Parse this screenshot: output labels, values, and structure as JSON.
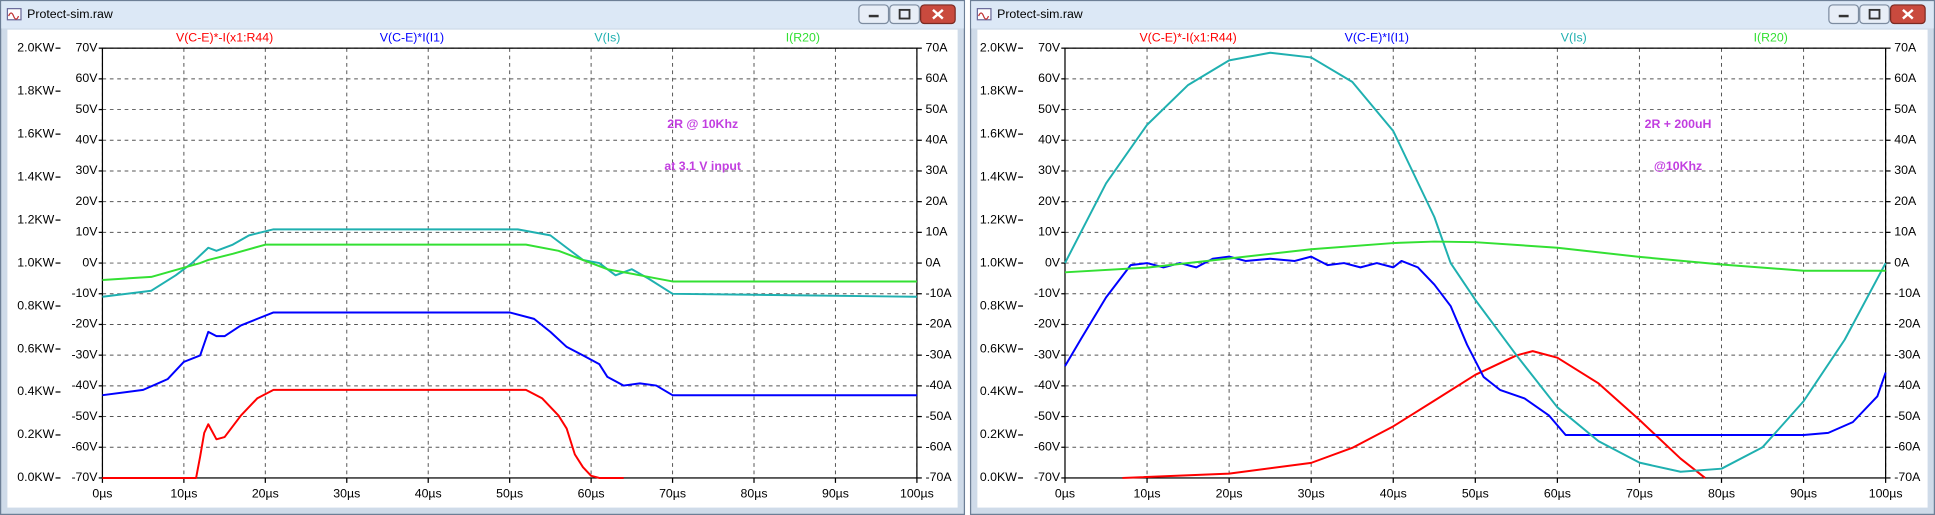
{
  "windows": [
    {
      "title": "Protect-sim.raw"
    },
    {
      "title": "Protect-sim.raw"
    }
  ],
  "chart_data": [
    {
      "type": "line",
      "annotations": [
        "2R @ 10Khz",
        "at 3.1 V input"
      ],
      "xlim": [
        0,
        100
      ],
      "xticks": [
        {
          "value": 0,
          "label": "0µs"
        },
        {
          "value": 10,
          "label": "10µs"
        },
        {
          "value": 20,
          "label": "20µs"
        },
        {
          "value": 30,
          "label": "30µs"
        },
        {
          "value": 40,
          "label": "40µs"
        },
        {
          "value": 50,
          "label": "50µs"
        },
        {
          "value": 60,
          "label": "60µs"
        },
        {
          "value": 70,
          "label": "70µs"
        },
        {
          "value": 80,
          "label": "80µs"
        },
        {
          "value": 90,
          "label": "90µs"
        },
        {
          "value": 100,
          "label": "100µs"
        }
      ],
      "ylim": [
        0,
        2
      ],
      "yticks": [
        {
          "value": 0,
          "label": "0.0KW"
        },
        {
          "value": 0.2,
          "label": "0.2KW"
        },
        {
          "value": 0.4,
          "label": "0.4KW"
        },
        {
          "value": 0.6,
          "label": "0.6KW"
        },
        {
          "value": 0.8,
          "label": "0.8KW"
        },
        {
          "value": 1,
          "label": "1.0KW"
        },
        {
          "value": 1.2,
          "label": "1.2KW"
        },
        {
          "value": 1.4,
          "label": "1.4KW"
        },
        {
          "value": 1.6,
          "label": "1.6KW"
        },
        {
          "value": 1.8,
          "label": "1.8KW"
        },
        {
          "value": 2,
          "label": "2.0KW"
        }
      ],
      "y2lim": [
        -70,
        70
      ],
      "y2ticks": [
        {
          "value": -70,
          "label": "-70V"
        },
        {
          "value": -60,
          "label": "-60V"
        },
        {
          "value": -50,
          "label": "-50V"
        },
        {
          "value": -40,
          "label": "-40V"
        },
        {
          "value": -30,
          "label": "-30V"
        },
        {
          "value": -20,
          "label": "-20V"
        },
        {
          "value": -10,
          "label": "-10V"
        },
        {
          "value": 0,
          "label": "0V"
        },
        {
          "value": 10,
          "label": "10V"
        },
        {
          "value": 20,
          "label": "20V"
        },
        {
          "value": 30,
          "label": "30V"
        },
        {
          "value": 40,
          "label": "40V"
        },
        {
          "value": 50,
          "label": "50V"
        },
        {
          "value": 60,
          "label": "60V"
        },
        {
          "value": 70,
          "label": "70V"
        }
      ],
      "y3lim": [
        -70,
        70
      ],
      "y3ticks": [
        {
          "value": -70,
          "label": "-70A"
        },
        {
          "value": -60,
          "label": "-60A"
        },
        {
          "value": -50,
          "label": "-50A"
        },
        {
          "value": -40,
          "label": "-40A"
        },
        {
          "value": -30,
          "label": "-30A"
        },
        {
          "value": -20,
          "label": "-20A"
        },
        {
          "value": -10,
          "label": "-10A"
        },
        {
          "value": 0,
          "label": "0A"
        },
        {
          "value": 10,
          "label": "10A"
        },
        {
          "value": 20,
          "label": "20A"
        },
        {
          "value": 30,
          "label": "30A"
        },
        {
          "value": 40,
          "label": "40A"
        },
        {
          "value": 50,
          "label": "50A"
        },
        {
          "value": 60,
          "label": "60A"
        },
        {
          "value": 70,
          "label": "70A"
        }
      ],
      "grid": true,
      "series": [
        {
          "name": "V(C-E)*-I(x1:R44)",
          "color": "#ff0000",
          "axis": "y",
          "x": [
            0,
            11.5,
            12,
            12.5,
            13,
            14,
            15,
            17,
            19,
            21,
            52,
            54,
            56,
            57,
            58,
            59,
            60,
            61,
            64
          ],
          "values": [
            0,
            0,
            0.1,
            0.21,
            0.25,
            0.18,
            0.19,
            0.29,
            0.37,
            0.41,
            0.41,
            0.37,
            0.29,
            0.23,
            0.11,
            0.05,
            0.01,
            0,
            0
          ]
        },
        {
          "name": "V(C-E)*I(I1)",
          "color": "#0000ff",
          "axis": "y",
          "x": [
            0,
            5,
            8,
            10,
            12,
            13,
            14,
            15,
            17,
            19,
            21,
            50,
            53,
            55,
            57,
            59,
            61,
            62,
            64,
            66,
            68,
            70,
            100
          ],
          "values": [
            0.385,
            0.41,
            0.46,
            0.54,
            0.57,
            0.68,
            0.66,
            0.66,
            0.71,
            0.74,
            0.77,
            0.77,
            0.74,
            0.68,
            0.61,
            0.57,
            0.53,
            0.47,
            0.43,
            0.44,
            0.43,
            0.385,
            0.385
          ]
        },
        {
          "name": "V(Is)",
          "color": "#1fb0b0",
          "axis": "y2",
          "x": [
            0,
            6,
            9,
            11,
            13,
            14,
            16,
            18,
            21,
            51,
            55,
            57,
            59,
            61,
            63,
            65,
            67,
            70,
            100
          ],
          "values": [
            -11,
            -9,
            -4,
            0,
            5,
            4,
            6,
            9,
            11,
            11,
            9,
            5,
            1,
            0,
            -4,
            -2,
            -5,
            -10,
            -11
          ]
        },
        {
          "name": "I(R20)",
          "color": "#33e033",
          "axis": "y3",
          "x": [
            0,
            6,
            12,
            13,
            16,
            20,
            52,
            56,
            60,
            62,
            66,
            70,
            100
          ],
          "values": [
            -5.5,
            -4.5,
            0,
            1,
            3,
            6,
            6,
            4,
            0,
            -2,
            -4,
            -6,
            -6
          ]
        }
      ]
    },
    {
      "type": "line",
      "annotations": [
        "2R + 200uH",
        "@10Khz"
      ],
      "xlim": [
        0,
        100
      ],
      "xticks": [
        {
          "value": 0,
          "label": "0µs"
        },
        {
          "value": 10,
          "label": "10µs"
        },
        {
          "value": 20,
          "label": "20µs"
        },
        {
          "value": 30,
          "label": "30µs"
        },
        {
          "value": 40,
          "label": "40µs"
        },
        {
          "value": 50,
          "label": "50µs"
        },
        {
          "value": 60,
          "label": "60µs"
        },
        {
          "value": 70,
          "label": "70µs"
        },
        {
          "value": 80,
          "label": "80µs"
        },
        {
          "value": 90,
          "label": "90µs"
        },
        {
          "value": 100,
          "label": "100µs"
        }
      ],
      "ylim": [
        0,
        2
      ],
      "yticks": [
        {
          "value": 0,
          "label": "0.0KW"
        },
        {
          "value": 0.2,
          "label": "0.2KW"
        },
        {
          "value": 0.4,
          "label": "0.4KW"
        },
        {
          "value": 0.6,
          "label": "0.6KW"
        },
        {
          "value": 0.8,
          "label": "0.8KW"
        },
        {
          "value": 1,
          "label": "1.0KW"
        },
        {
          "value": 1.2,
          "label": "1.2KW"
        },
        {
          "value": 1.4,
          "label": "1.4KW"
        },
        {
          "value": 1.6,
          "label": "1.6KW"
        },
        {
          "value": 1.8,
          "label": "1.8KW"
        },
        {
          "value": 2,
          "label": "2.0KW"
        }
      ],
      "y2lim": [
        -70,
        70
      ],
      "y2ticks": [
        {
          "value": -70,
          "label": "-70V"
        },
        {
          "value": -60,
          "label": "-60V"
        },
        {
          "value": -50,
          "label": "-50V"
        },
        {
          "value": -40,
          "label": "-40V"
        },
        {
          "value": -30,
          "label": "-30V"
        },
        {
          "value": -20,
          "label": "-20V"
        },
        {
          "value": -10,
          "label": "-10V"
        },
        {
          "value": 0,
          "label": "0V"
        },
        {
          "value": 10,
          "label": "10V"
        },
        {
          "value": 20,
          "label": "20V"
        },
        {
          "value": 30,
          "label": "30V"
        },
        {
          "value": 40,
          "label": "40V"
        },
        {
          "value": 50,
          "label": "50V"
        },
        {
          "value": 60,
          "label": "60V"
        },
        {
          "value": 70,
          "label": "70V"
        }
      ],
      "y3lim": [
        -70,
        70
      ],
      "y3ticks": [
        {
          "value": -70,
          "label": "-70A"
        },
        {
          "value": -60,
          "label": "-60A"
        },
        {
          "value": -50,
          "label": "-50A"
        },
        {
          "value": -40,
          "label": "-40A"
        },
        {
          "value": -30,
          "label": "-30A"
        },
        {
          "value": -20,
          "label": "-20A"
        },
        {
          "value": -10,
          "label": "-10A"
        },
        {
          "value": 0,
          "label": "0A"
        },
        {
          "value": 10,
          "label": "10A"
        },
        {
          "value": 20,
          "label": "20A"
        },
        {
          "value": 30,
          "label": "30A"
        },
        {
          "value": 40,
          "label": "40A"
        },
        {
          "value": 50,
          "label": "50A"
        },
        {
          "value": 60,
          "label": "60A"
        },
        {
          "value": 70,
          "label": "70A"
        }
      ],
      "grid": true,
      "series": [
        {
          "name": "V(C-E)*-I(x1:R44)",
          "color": "#ff0000",
          "axis": "y",
          "x": [
            7,
            20,
            30,
            35,
            40,
            45,
            50,
            55,
            57,
            60,
            65,
            70,
            75,
            78
          ],
          "values": [
            0,
            0.02,
            0.07,
            0.14,
            0.24,
            0.36,
            0.48,
            0.57,
            0.59,
            0.56,
            0.44,
            0.27,
            0.09,
            0
          ]
        },
        {
          "name": "V(C-E)*I(I1)",
          "color": "#0000ff",
          "axis": "y",
          "x": [
            0,
            2,
            5,
            8,
            10,
            12,
            14,
            16,
            18,
            20,
            22,
            25,
            28,
            30,
            32,
            34,
            36,
            38,
            40,
            41,
            43,
            45,
            47,
            49,
            51,
            53,
            56,
            59,
            61,
            90,
            93,
            96,
            99,
            100
          ],
          "values": [
            0.52,
            0.65,
            0.84,
            0.99,
            1,
            0.98,
            1,
            0.98,
            1.02,
            1.03,
            1.01,
            1.02,
            1.01,
            1.03,
            0.99,
            1,
            0.98,
            1,
            0.98,
            1.01,
            0.98,
            0.9,
            0.8,
            0.62,
            0.47,
            0.41,
            0.37,
            0.29,
            0.2,
            0.2,
            0.21,
            0.26,
            0.38,
            0.49
          ]
        },
        {
          "name": "V(Is)",
          "color": "#1fb0b0",
          "axis": "y2",
          "x": [
            0,
            5,
            10,
            15,
            20,
            25,
            30,
            35,
            40,
            45,
            47,
            50,
            55,
            60,
            65,
            70,
            75,
            80,
            85,
            90,
            95,
            100
          ],
          "values": [
            0,
            26,
            45,
            58,
            66,
            68.5,
            67,
            59,
            43,
            15,
            0,
            -12,
            -30,
            -47,
            -58,
            -65,
            -68,
            -67,
            -60,
            -45,
            -25,
            0
          ]
        },
        {
          "name": "I(R20)",
          "color": "#33e033",
          "axis": "y3",
          "x": [
            0,
            10,
            20,
            30,
            40,
            45,
            50,
            60,
            70,
            80,
            90,
            100
          ],
          "values": [
            -3,
            -1.5,
            1.5,
            4.5,
            6.5,
            7,
            6.8,
            5,
            2,
            -0.5,
            -2.5,
            -2.5
          ]
        }
      ]
    }
  ]
}
